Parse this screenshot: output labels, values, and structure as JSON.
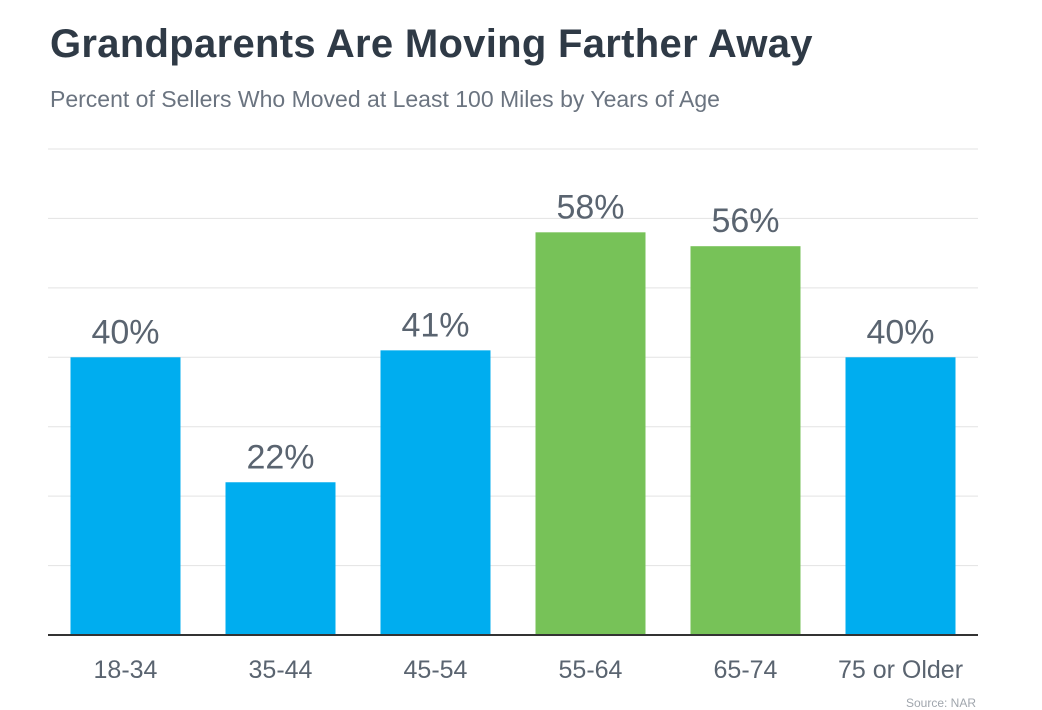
{
  "title": "Grandparents Are Moving Farther Away",
  "subtitle": "Percent of Sellers Who Moved at Least 100 Miles by Years of Age",
  "source": "Source: NAR",
  "colors": {
    "blue": "#00adef",
    "green": "#77c258",
    "label": "#5a6470",
    "grid": "#e3e3e3",
    "axis": "#333333"
  },
  "chart_data": {
    "type": "bar",
    "title": "Grandparents Are Moving Farther Away",
    "subtitle": "Percent of Sellers Who Moved at Least 100 Miles by Years of Age",
    "categories": [
      "18-34",
      "35-44",
      "45-54",
      "55-64",
      "65-74",
      "75 or Older"
    ],
    "values": [
      40,
      22,
      41,
      58,
      56,
      40
    ],
    "data_labels": [
      "40%",
      "22%",
      "41%",
      "58%",
      "56%",
      "40%"
    ],
    "bar_colors": [
      "#00adef",
      "#00adef",
      "#00adef",
      "#77c258",
      "#77c258",
      "#00adef"
    ],
    "ylim": [
      0,
      70
    ],
    "grid": true,
    "xlabel": "",
    "ylabel": ""
  }
}
